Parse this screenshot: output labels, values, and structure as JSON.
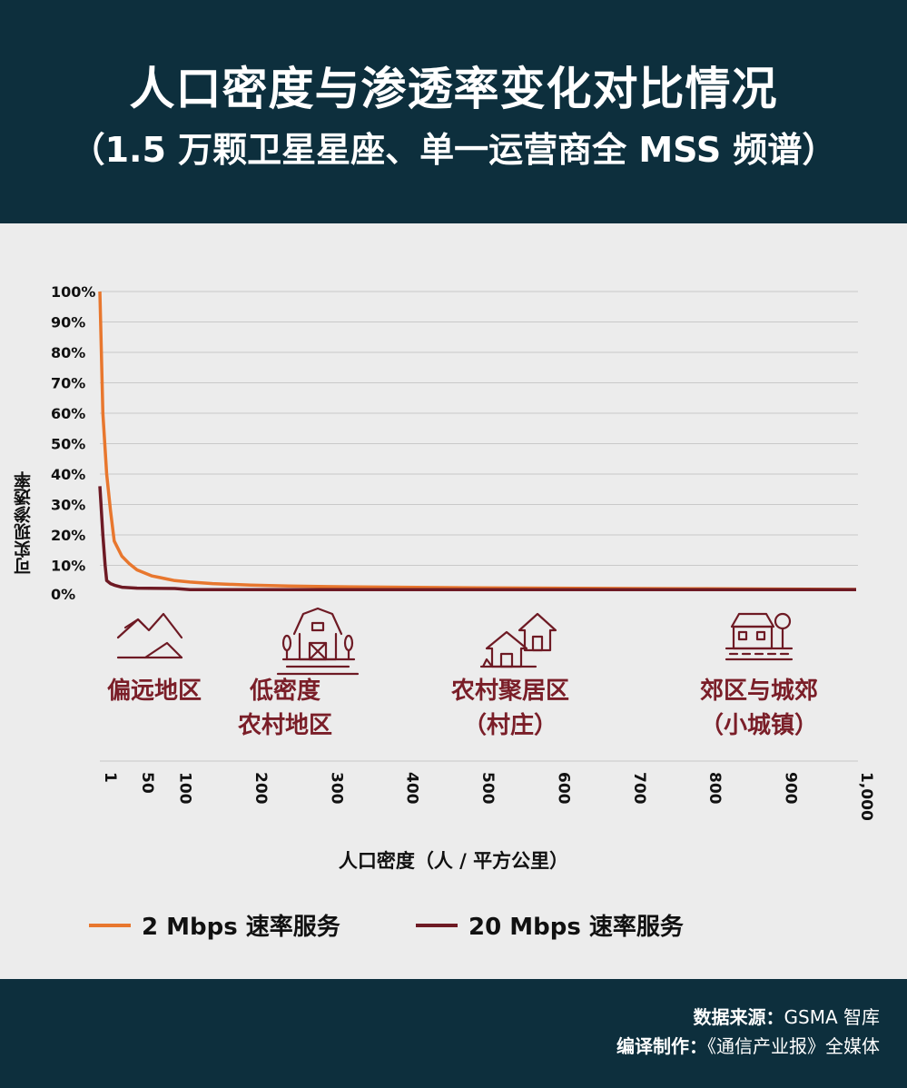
{
  "header": {
    "title_line1": "人口密度与渗透率变化对比情况",
    "title_line2": "（1.5 万颗卫星星座、单一运营商全 MSS 频谱）"
  },
  "chart_data": {
    "type": "line",
    "title": "人口密度与渗透率变化对比情况",
    "subtitle": "（1.5 万颗卫星星座、单一运营商全 MSS 频谱）",
    "xlabel": "人口密度（人 / 平方公里）",
    "ylabel": "可实现渗透率",
    "xlim": [
      1,
      1000
    ],
    "ylim": [
      0,
      100
    ],
    "x_ticks": [
      "1",
      "50",
      "100",
      "200",
      "300",
      "400",
      "500",
      "600",
      "700",
      "800",
      "900",
      "1,000"
    ],
    "x_tick_values": [
      1,
      50,
      100,
      200,
      300,
      400,
      500,
      600,
      700,
      800,
      900,
      1000
    ],
    "y_ticks": [
      "0%",
      "10%",
      "20%",
      "30%",
      "40%",
      "50%",
      "60%",
      "70%",
      "80%",
      "90%",
      "100%"
    ],
    "y_tick_values": [
      0,
      10,
      20,
      30,
      40,
      50,
      60,
      70,
      80,
      90,
      100
    ],
    "grid": true,
    "legend_position": "bottom",
    "series": [
      {
        "name": "2 Mbps 速率服务",
        "color": "#e8772e",
        "x": [
          1,
          5,
          10,
          15,
          20,
          30,
          40,
          50,
          60,
          70,
          80,
          90,
          100,
          120,
          150,
          200,
          250,
          300,
          400,
          500,
          600,
          700,
          800,
          900,
          1000
        ],
        "y": [
          100,
          60,
          40,
          28,
          18,
          13,
          10.5,
          8.5,
          7.5,
          6.5,
          6,
          5.5,
          5,
          4.5,
          4,
          3.5,
          3.2,
          3,
          2.8,
          2.6,
          2.5,
          2.4,
          2.3,
          2.2,
          2.1
        ]
      },
      {
        "name": "20 Mbps 速率服务",
        "color": "#6e1a24",
        "x": [
          1,
          5,
          8,
          10,
          15,
          20,
          30,
          50,
          100,
          120,
          200,
          400,
          600,
          1000
        ],
        "y": [
          36,
          20,
          10,
          5,
          4,
          3.5,
          2.8,
          2.5,
          2.4,
          2,
          2,
          2,
          2,
          2
        ]
      }
    ],
    "regions": [
      {
        "label_lines": [
          "偏远地区"
        ],
        "icon": "mountain-icon"
      },
      {
        "label_lines": [
          "低密度",
          "农村地区"
        ],
        "icon": "barn-icon"
      },
      {
        "label_lines": [
          "农村聚居区",
          "（村庄）"
        ],
        "icon": "village-houses-icon"
      },
      {
        "label_lines": [
          "郊区与城郊",
          "（小城镇）"
        ],
        "icon": "town-house-icon"
      }
    ]
  },
  "footer": {
    "source_label": "数据来源：",
    "source_value": "GSMA 智库",
    "compiled_label": "编译制作：",
    "compiled_value": "《通信产业报》全媒体"
  },
  "colors": {
    "header_bg": "#0d2f3d",
    "accent_region": "#7a1e28"
  }
}
